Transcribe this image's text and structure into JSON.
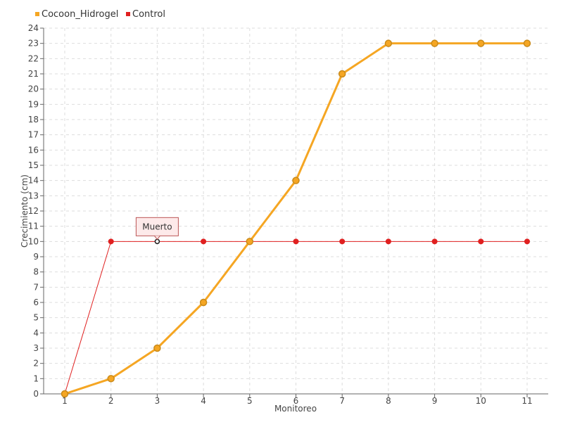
{
  "chart_data": {
    "type": "line",
    "x": [
      1,
      2,
      3,
      4,
      5,
      6,
      7,
      8,
      9,
      10,
      11
    ],
    "series": [
      {
        "name": "Cocoon_Hidrogel",
        "values": [
          0,
          1,
          3,
          6,
          10,
          14,
          21,
          23,
          23,
          23,
          23
        ],
        "color": "#f5a623",
        "marker_fill": "#f5a623",
        "marker_stroke": "#c98a1a"
      },
      {
        "name": "Control",
        "values": [
          0,
          10,
          10,
          10,
          10,
          10,
          10,
          10,
          10,
          10,
          10
        ],
        "color": "#e02020",
        "marker_fill": "#e02020",
        "marker_stroke": "#e02020"
      }
    ],
    "xlabel": "Monitoreo",
    "ylabel": "Crecimiento (cm)",
    "xlim": [
      1,
      11
    ],
    "ylim": [
      0,
      24
    ],
    "y_ticks": [
      0,
      1,
      2,
      3,
      4,
      5,
      6,
      7,
      8,
      9,
      10,
      11,
      12,
      13,
      14,
      15,
      16,
      17,
      18,
      19,
      20,
      21,
      22,
      23,
      24
    ],
    "x_ticks": [
      1,
      2,
      3,
      4,
      5,
      6,
      7,
      8,
      9,
      10,
      11
    ],
    "grid": true,
    "legend_position": "top-left",
    "annotations": [
      {
        "text": "Muerto",
        "series": "Control",
        "x": 3,
        "y": 10
      }
    ]
  }
}
